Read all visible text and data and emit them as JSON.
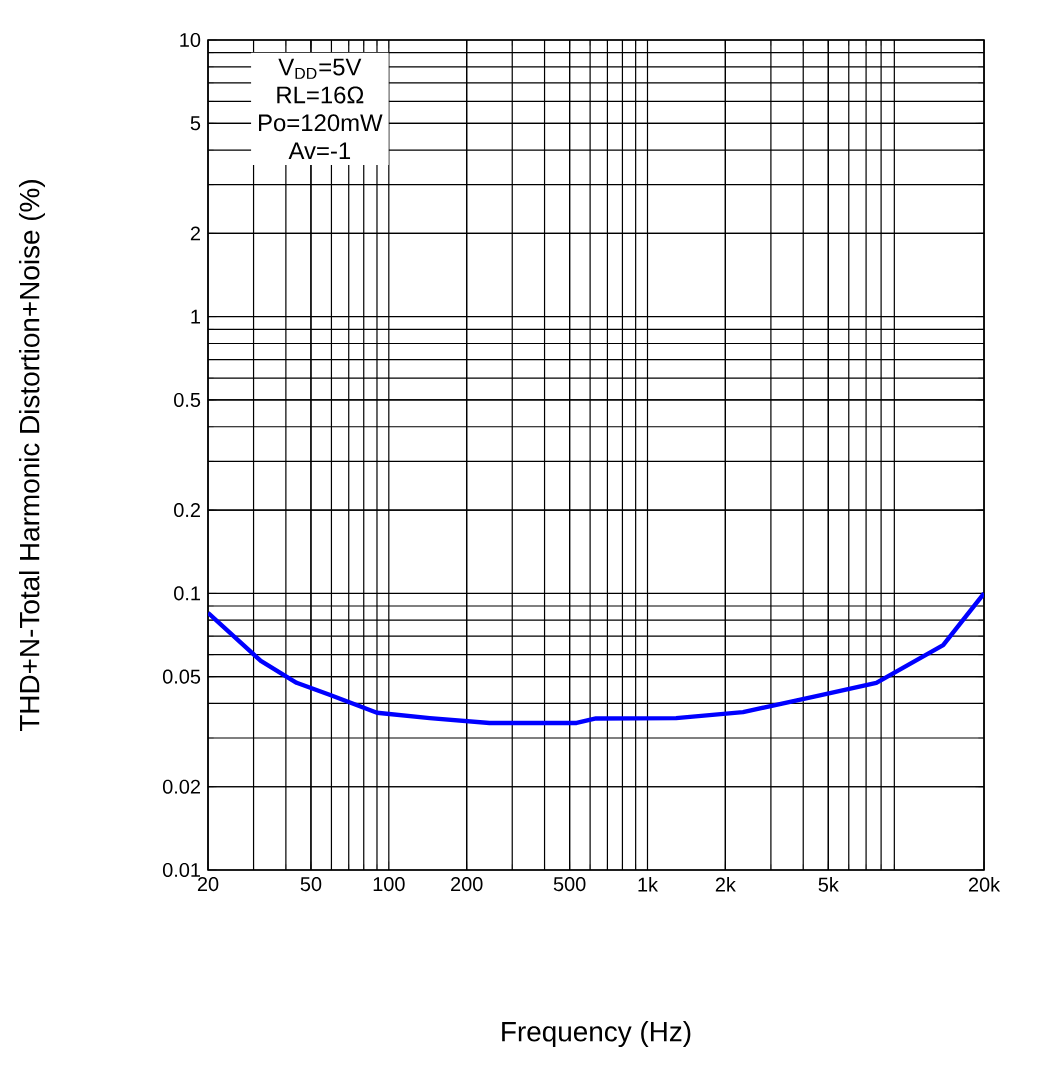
{
  "chart_data": {
    "type": "line",
    "xlabel": "Frequency (Hz)",
    "ylabel": "THD+N-Total Harmonic Distortion+Noise (%)",
    "log": "xy",
    "grid": true,
    "marker": "none",
    "line_style": "solid",
    "xlim": [
      20,
      20000
    ],
    "ylim": [
      0.01,
      10
    ],
    "xticks": [
      20,
      50,
      100,
      200,
      500,
      {
        "value": 1000,
        "label": "1k"
      },
      {
        "value": 2000,
        "label": "2k"
      },
      {
        "value": 5000,
        "label": "5k"
      },
      {
        "value": 20000,
        "label": "20k"
      }
    ],
    "yticks": [
      0.01,
      0.02,
      0.05,
      0.1,
      0.2,
      0.5,
      1,
      2,
      5,
      10
    ],
    "annotations": [
      "V$_{DD}$=5V",
      "RL=16Ω",
      "Po=120mW",
      "Av=-1"
    ],
    "series": [
      {
        "color": "#0000ff",
        "x": [
          20,
          32,
          44,
          59,
          90,
          144,
          245,
          532,
          632,
          1290,
          2340,
          4500,
          7670,
          13900,
          20000
        ],
        "values": [
          0.085,
          0.057,
          0.0475,
          0.043,
          0.037,
          0.0354,
          0.034,
          0.034,
          0.0353,
          0.0354,
          0.0372,
          0.0425,
          0.0475,
          0.065,
          0.1
        ]
      }
    ]
  }
}
